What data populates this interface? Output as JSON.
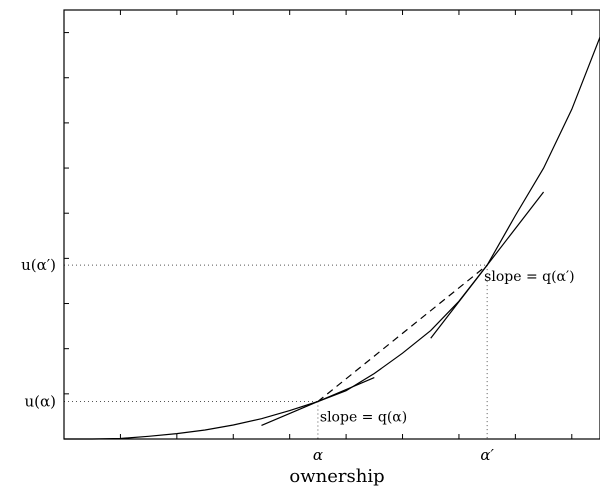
{
  "chart_data": {
    "type": "line",
    "xlabel": "ownership",
    "ylabel": "",
    "xlim": [
      0,
      9.5
    ],
    "ylim": [
      0,
      9.5
    ],
    "curve": {
      "x": [
        0,
        0.5,
        1,
        1.5,
        2,
        2.5,
        3,
        3.5,
        4,
        4.5,
        5,
        5.5,
        6,
        6.5,
        7,
        7.5,
        8,
        8.5,
        9,
        9.5
      ],
      "y": [
        0,
        0,
        0.01,
        0.06,
        0.12,
        0.2,
        0.31,
        0.45,
        0.63,
        0.83,
        1.07,
        1.45,
        1.9,
        2.4,
        3.05,
        3.85,
        4.95,
        6.0,
        7.3,
        8.9
      ]
    },
    "alpha": 4.5,
    "alpha_prime": 7.5,
    "tick_labels": {
      "alpha": "α",
      "alpha_prime": "α′",
      "u_alpha": "u(α)",
      "u_alpha_prime": "u(α′)"
    },
    "annotations": {
      "slope_alpha": "slope = q(α)",
      "slope_alpha_prime": "slope = q(α′)"
    },
    "tangent_slopes": {
      "alpha": 0.53,
      "alpha_prime": 1.62
    },
    "tangent_half_widths": {
      "alpha": 1.0,
      "alpha_prime": 1.0
    },
    "x_ticks": [
      1,
      2,
      3,
      4,
      5,
      6,
      7,
      8,
      9
    ],
    "y_ticks": [
      1,
      2,
      3,
      4,
      5,
      6,
      7,
      8,
      9
    ],
    "grid": false
  }
}
